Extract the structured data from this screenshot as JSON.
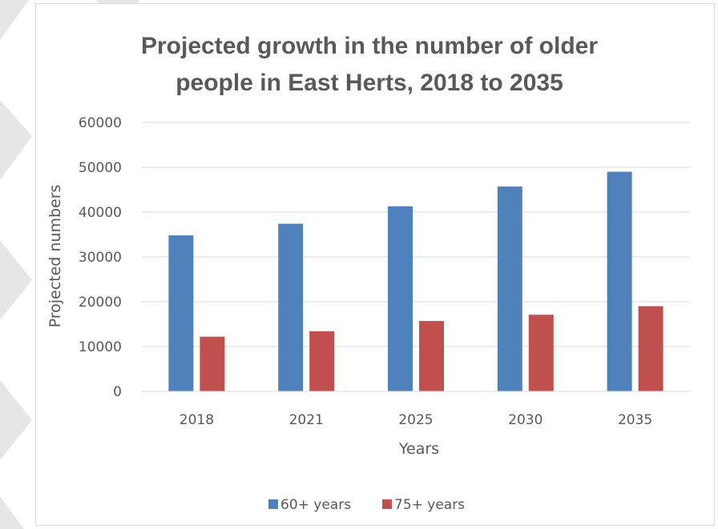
{
  "chart_data": {
    "type": "bar",
    "title": "Projected growth in the number of older people in East Herts, 2018 to 2035",
    "title_lines": [
      "Projected growth in the number of older",
      "people in East Herts, 2018 to 2035"
    ],
    "xlabel": "Years",
    "ylabel": "Projected numbers",
    "categories": [
      "2018",
      "2021",
      "2025",
      "2030",
      "2035"
    ],
    "series": [
      {
        "name": "60+ years",
        "color": "#4f81bd",
        "values": [
          34800,
          37400,
          41300,
          45700,
          49000
        ]
      },
      {
        "name": "75+ years",
        "color": "#c0504d",
        "values": [
          12200,
          13400,
          15700,
          17100,
          19000
        ]
      }
    ],
    "ylim": [
      0,
      60000
    ],
    "yticks": [
      "0",
      "10000",
      "20000",
      "30000",
      "40000",
      "50000",
      "60000"
    ],
    "grid": true,
    "legend": "bottom"
  }
}
